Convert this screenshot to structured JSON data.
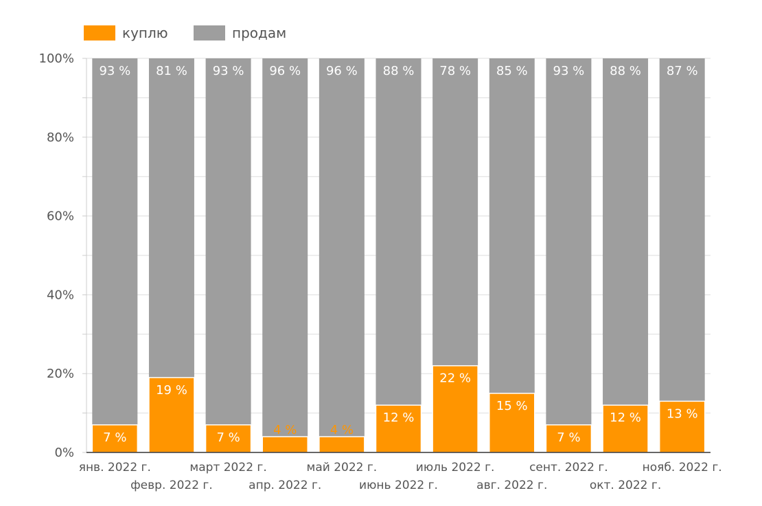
{
  "chart_data": {
    "type": "bar",
    "stacked": true,
    "categories": [
      "янв. 2022 г.",
      "февр. 2022 г.",
      "март 2022 г.",
      "апр. 2022 г.",
      "май 2022 г.",
      "июнь 2022 г.",
      "июль 2022 г.",
      "авг. 2022 г.",
      "сент. 2022 г.",
      "окт. 2022 г.",
      "нояб. 2022 г."
    ],
    "series": [
      {
        "name": "куплю",
        "color": "#ff9500",
        "values": [
          7,
          19,
          7,
          4,
          4,
          12,
          22,
          15,
          7,
          12,
          13
        ],
        "labels": [
          "7 %",
          "19 %",
          "7 %",
          "4 %",
          "4 %",
          "12 %",
          "22 %",
          "15 %",
          "7 %",
          "12 %",
          "13 %"
        ]
      },
      {
        "name": "продам",
        "color": "#9e9e9e",
        "values": [
          93,
          81,
          93,
          96,
          96,
          88,
          78,
          85,
          93,
          88,
          87
        ],
        "labels": [
          "93 %",
          "81 %",
          "93 %",
          "96 %",
          "96 %",
          "88 %",
          "78 %",
          "85 %",
          "93 %",
          "88 %",
          "87 %"
        ]
      }
    ],
    "ylim": [
      0,
      100
    ],
    "yticks": [
      "0%",
      "20%",
      "40%",
      "60%",
      "80%",
      "100%"
    ],
    "ytick_values": [
      0,
      20,
      40,
      60,
      80,
      100
    ],
    "grid": true,
    "legend": "top-left",
    "title": "",
    "xlabel": "",
    "ylabel": ""
  }
}
